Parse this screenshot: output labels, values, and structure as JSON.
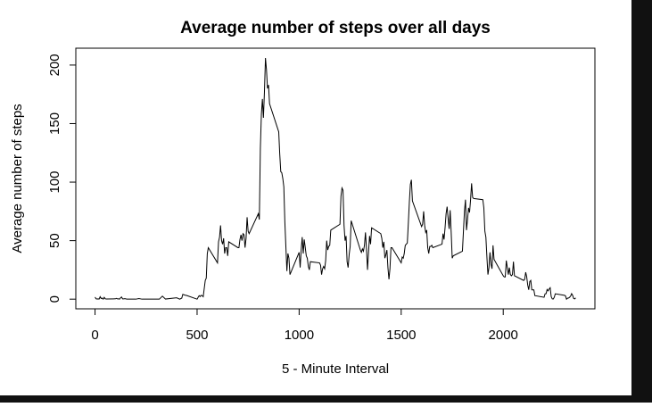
{
  "chart_data": {
    "type": "line",
    "title": "Average number of steps over all days",
    "x_label": "5 - Minute Interval",
    "y_label": "Average number of steps",
    "color": "#000000",
    "x": [
      0,
      5,
      10,
      15,
      20,
      25,
      30,
      35,
      40,
      45,
      50,
      55,
      100,
      105,
      110,
      115,
      120,
      125,
      130,
      135,
      140,
      145,
      150,
      155,
      200,
      215,
      230,
      245,
      300,
      315,
      330,
      345,
      400,
      415,
      425,
      430,
      440,
      450,
      500,
      505,
      510,
      515,
      520,
      525,
      530,
      540,
      545,
      550,
      555,
      600,
      605,
      610,
      615,
      620,
      625,
      630,
      635,
      640,
      645,
      650,
      655,
      700,
      705,
      710,
      715,
      720,
      725,
      730,
      735,
      740,
      745,
      750,
      755,
      800,
      805,
      810,
      815,
      820,
      825,
      830,
      835,
      840,
      845,
      850,
      855,
      900,
      905,
      910,
      915,
      920,
      925,
      930,
      935,
      940,
      945,
      950,
      955,
      1000,
      1005,
      1010,
      1015,
      1020,
      1025,
      1030,
      1035,
      1040,
      1045,
      1050,
      1055,
      1100,
      1105,
      1110,
      1115,
      1120,
      1125,
      1130,
      1135,
      1140,
      1145,
      1150,
      1155,
      1200,
      1205,
      1210,
      1215,
      1220,
      1225,
      1230,
      1235,
      1240,
      1245,
      1250,
      1255,
      1300,
      1305,
      1310,
      1315,
      1320,
      1325,
      1330,
      1335,
      1340,
      1345,
      1350,
      1355,
      1400,
      1405,
      1410,
      1415,
      1420,
      1425,
      1430,
      1435,
      1440,
      1445,
      1450,
      1455,
      1500,
      1505,
      1510,
      1515,
      1520,
      1525,
      1530,
      1535,
      1540,
      1545,
      1550,
      1555,
      1600,
      1605,
      1610,
      1615,
      1620,
      1625,
      1630,
      1635,
      1640,
      1645,
      1650,
      1655,
      1700,
      1705,
      1710,
      1715,
      1720,
      1725,
      1730,
      1735,
      1740,
      1745,
      1750,
      1755,
      1800,
      1805,
      1810,
      1815,
      1820,
      1825,
      1830,
      1835,
      1840,
      1845,
      1850,
      1855,
      1900,
      1905,
      1910,
      1915,
      1920,
      1925,
      1930,
      1935,
      1940,
      1945,
      1950,
      1955,
      2000,
      2005,
      2010,
      2015,
      2020,
      2025,
      2030,
      2035,
      2040,
      2045,
      2050,
      2055,
      2100,
      2105,
      2110,
      2115,
      2120,
      2125,
      2130,
      2135,
      2140,
      2145,
      2150,
      2155,
      2200,
      2205,
      2210,
      2215,
      2220,
      2225,
      2230,
      2235,
      2240,
      2245,
      2250,
      2255,
      2300,
      2305,
      2310,
      2315,
      2320,
      2325,
      2330,
      2335,
      2340,
      2345,
      2350,
      2355
    ],
    "y": [
      1.7,
      0.3,
      0.1,
      0.2,
      0.1,
      2.1,
      0.5,
      0.9,
      0,
      1.5,
      0.3,
      0.1,
      0.3,
      0.7,
      0.2,
      0.3,
      0,
      1.1,
      1.8,
      0.2,
      0.2,
      0.4,
      0.3,
      0,
      0,
      0.5,
      0,
      0,
      0,
      0,
      2.6,
      0.1,
      1.2,
      0,
      0.9,
      4.1,
      3.5,
      3.1,
      0,
      1.6,
      3,
      2.2,
      3.3,
      3,
      2.1,
      16,
      18,
      39,
      44,
      31,
      49,
      53,
      63,
      50,
      47,
      52,
      39,
      44,
      44,
      37,
      49,
      44,
      44,
      51,
      55,
      50,
      56,
      55,
      44,
      52,
      70,
      58,
      56,
      73,
      68,
      129,
      158,
      171,
      155,
      177,
      206,
      196,
      180,
      183,
      167,
      143,
      124,
      109,
      108,
      103,
      96,
      66,
      45,
      24,
      39,
      35,
      21,
      40,
      27,
      42,
      53,
      39,
      51,
      44,
      37,
      35,
      28,
      25,
      32,
      31,
      29,
      21,
      26,
      28,
      26,
      33,
      50,
      42,
      45,
      46,
      59,
      64,
      88,
      95,
      93,
      63,
      50,
      54,
      32,
      27,
      38,
      45,
      67,
      42,
      40,
      43,
      41,
      46,
      57,
      43,
      25,
      40,
      54,
      47,
      61,
      56,
      52,
      44,
      49,
      35,
      38,
      42,
      27,
      17,
      26,
      44,
      44,
      31,
      36,
      35,
      39,
      46,
      47,
      48,
      65,
      83,
      98,
      102,
      84,
      62,
      64,
      75,
      63,
      57,
      59,
      44,
      39,
      45,
      45,
      46,
      44,
      47,
      56,
      51,
      61,
      73,
      79,
      69,
      60,
      76,
      57,
      35,
      37,
      41,
      58,
      75,
      85,
      59,
      68,
      78,
      74,
      85,
      99,
      87,
      86,
      85,
      78,
      58,
      53,
      36,
      21,
      27,
      40,
      30,
      26,
      46,
      34,
      20,
      19,
      19,
      33,
      27,
      21,
      27,
      21,
      20,
      21,
      32,
      20,
      16,
      17,
      23,
      19,
      12,
      8,
      15,
      16,
      8,
      8,
      8,
      3,
      1.6,
      4.6,
      4.7,
      8.3,
      7.1,
      8.7,
      9.8,
      2.2,
      0.3,
      0.1,
      1.6,
      4.6,
      3.3,
      2.8,
      0,
      0.8,
      1,
      1.6,
      2.6,
      4.7,
      3.3,
      0.6,
      0.2,
      1.1
    ],
    "xlim": [
      -94.2,
      2449.2
    ],
    "ylim": [
      -8.25,
      214.42
    ],
    "xticks": [
      0,
      500,
      1000,
      1500,
      2000
    ],
    "yticks": [
      0,
      50,
      100,
      150,
      200
    ]
  }
}
